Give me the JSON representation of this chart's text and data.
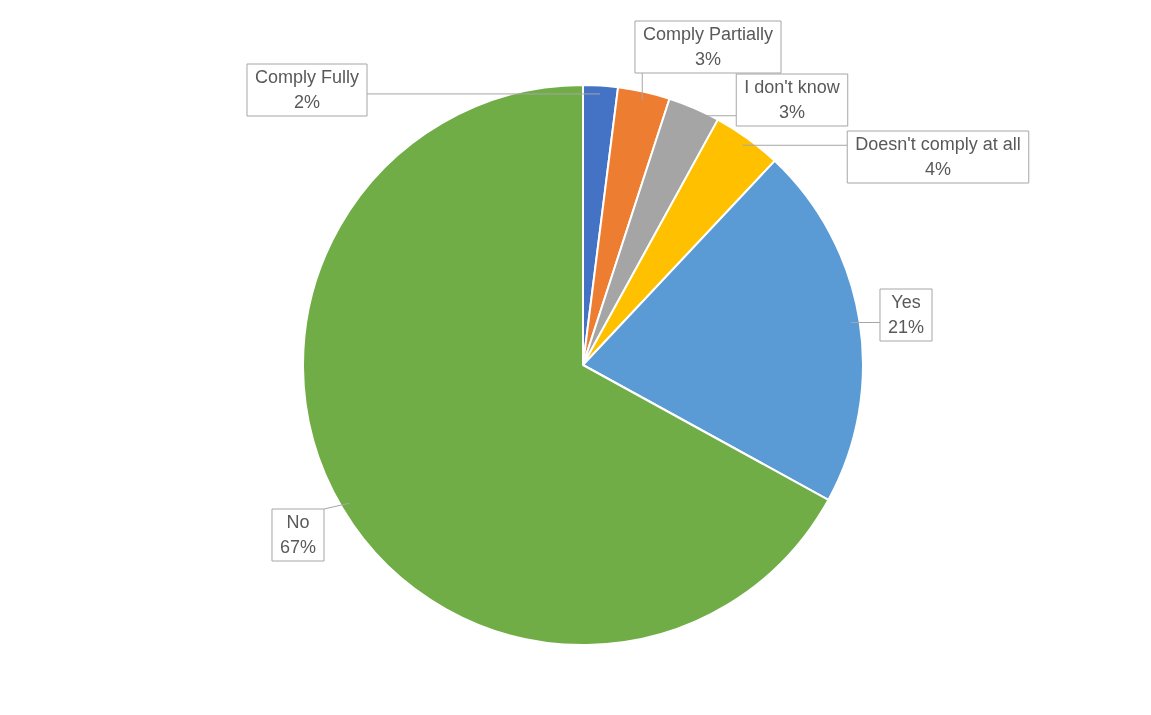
{
  "chart_data": {
    "type": "pie",
    "categories": [
      "Comply Fully",
      "Comply Partially",
      "I don't know",
      "Doesn't comply at all",
      "Yes",
      "No"
    ],
    "values": [
      2,
      3,
      3,
      4,
      21,
      67
    ],
    "colors": [
      "#4472c4",
      "#ed7d31",
      "#a5a5a5",
      "#ffc000",
      "#5b9bd5",
      "#70ad47"
    ],
    "value_labels": [
      "2%",
      "3%",
      "3%",
      "4%",
      "21%",
      "67%"
    ],
    "legend": false
  }
}
